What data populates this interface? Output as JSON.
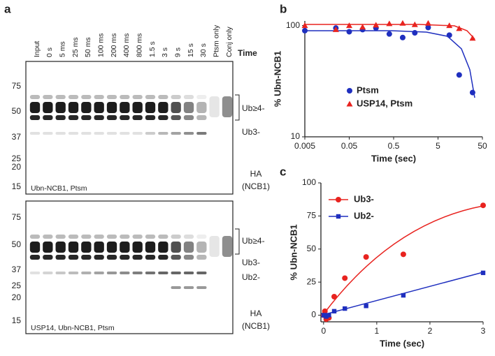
{
  "panel_labels": [
    "a",
    "b",
    "c"
  ],
  "blot": {
    "lane_header": "Time",
    "lanes": [
      "Input",
      "0 s",
      "5 ms",
      "25 ms",
      "50 ms",
      "100 ms",
      "200 ms",
      "400 ms",
      "800 ms",
      "1.5 s",
      "3 s",
      "9 s",
      "15 s",
      "30 s",
      "Ptsm only",
      "Conj only"
    ],
    "panels": [
      {
        "label": "Ubn-NCB1, Ptsm",
        "markers": [
          75,
          50,
          37,
          25,
          20,
          15
        ],
        "annotations": [
          "Ub≥4-",
          "Ub3-"
        ],
        "probe": [
          "HA",
          "(NCB1)"
        ]
      },
      {
        "label": "USP14, Ubn-NCB1, Ptsm",
        "markers": [
          75,
          50,
          37,
          25,
          20,
          15
        ],
        "annotations": [
          "Ub≥4-",
          "Ub3-",
          "Ub2-"
        ],
        "probe": [
          "HA",
          "(NCB1)"
        ]
      }
    ]
  },
  "chart_data": [
    {
      "type": "scatter",
      "x_label": "Time (sec)",
      "y_label": "% Ubn-NCB1",
      "xscale": "log",
      "yscale": "log",
      "xlim": [
        0.005,
        50
      ],
      "ylim": [
        10,
        110
      ],
      "xticks": [
        0.005,
        0.05,
        0.5,
        5,
        50
      ],
      "yticks": [
        10,
        100
      ],
      "x": [
        0.005,
        0.025,
        0.05,
        0.1,
        0.2,
        0.4,
        0.8,
        1.5,
        3,
        9,
        15,
        30
      ],
      "series": [
        {
          "name": "Ptsm",
          "color": "#1f2fbf",
          "marker": "circle",
          "values": [
            90,
            95,
            88,
            92,
            95,
            84,
            78,
            86,
            96,
            82,
            36,
            25
          ]
        },
        {
          "name": "USP14, Ptsm",
          "color": "#e8231f",
          "marker": "triangle",
          "values": [
            100,
            92,
            100,
            97,
            101,
            104,
            105,
            102,
            105,
            100,
            94,
            77
          ]
        }
      ]
    },
    {
      "type": "scatter",
      "x_label": "Time (sec)",
      "y_label": "% Ubn-NCB1",
      "xscale": "linear",
      "yscale": "linear",
      "xlim": [
        -0.05,
        3
      ],
      "ylim": [
        -5,
        100
      ],
      "xticks": [
        0,
        1,
        2,
        3
      ],
      "yticks": [
        0,
        25,
        50,
        75,
        100
      ],
      "x": [
        0,
        0.025,
        0.05,
        0.1,
        0.2,
        0.4,
        0.8,
        1.5,
        3
      ],
      "series": [
        {
          "name": "Ub3-",
          "color": "#e8231f",
          "marker": "circle",
          "values": [
            0,
            3,
            -3,
            -2,
            14,
            28,
            44,
            46,
            83
          ]
        },
        {
          "name": "Ub2-",
          "color": "#1f2fbf",
          "marker": "square",
          "values": [
            0,
            0,
            -1,
            0,
            3,
            5,
            7,
            15,
            32
          ]
        }
      ]
    }
  ]
}
